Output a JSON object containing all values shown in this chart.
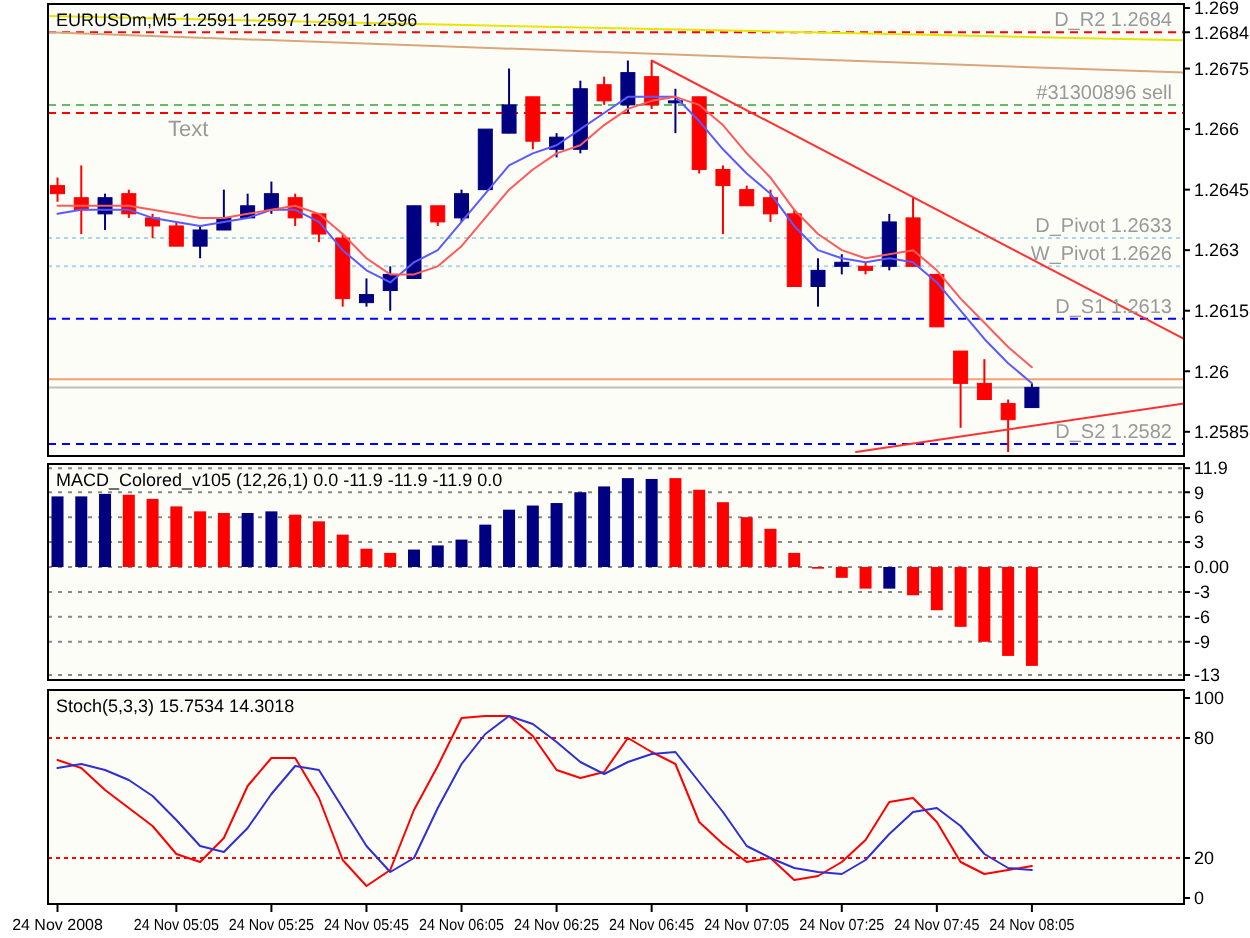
{
  "chart_data": [
    {
      "type": "candlestick",
      "title": "EURUSDm,M5 1.2591 1.2597 1.2591 1.2596",
      "tick_labels": "y",
      "x": [
        "2008-11-24T04:40",
        "2008-11-24T04:45",
        "2008-11-24T04:50",
        "2008-11-24T04:55",
        "2008-11-24T05:00",
        "2008-11-24T05:05",
        "2008-11-24T05:10",
        "2008-11-24T05:15",
        "2008-11-24T05:20",
        "2008-11-24T05:25",
        "2008-11-24T05:30",
        "2008-11-24T05:35",
        "2008-11-24T05:40",
        "2008-11-24T05:45",
        "2008-11-24T05:50",
        "2008-11-24T05:55",
        "2008-11-24T06:00",
        "2008-11-24T06:05",
        "2008-11-24T06:10",
        "2008-11-24T06:15",
        "2008-11-24T06:20",
        "2008-11-24T06:25",
        "2008-11-24T06:30",
        "2008-11-24T06:35",
        "2008-11-24T06:40",
        "2008-11-24T06:45",
        "2008-11-24T06:50",
        "2008-11-24T06:55",
        "2008-11-24T07:00",
        "2008-11-24T07:05",
        "2008-11-24T07:10",
        "2008-11-24T07:15",
        "2008-11-24T07:20",
        "2008-11-24T07:25",
        "2008-11-24T07:30",
        "2008-11-24T07:35",
        "2008-11-24T07:40",
        "2008-11-24T07:45",
        "2008-11-24T07:50",
        "2008-11-24T07:55",
        "2008-11-24T08:00",
        "2008-11-24T08:05"
      ],
      "ohlc": [
        [
          1.2646,
          1.2648,
          1.2642,
          1.2644
        ],
        [
          1.2643,
          1.2651,
          1.2634,
          1.264
        ],
        [
          1.2639,
          1.2644,
          1.2635,
          1.2643
        ],
        [
          1.2644,
          1.2645,
          1.2638,
          1.2639
        ],
        [
          1.2638,
          1.2639,
          1.2633,
          1.2636
        ],
        [
          1.2636,
          1.2637,
          1.2631,
          1.2631
        ],
        [
          1.2631,
          1.2636,
          1.2628,
          1.2635
        ],
        [
          1.2635,
          1.2645,
          1.2635,
          1.2638
        ],
        [
          1.2638,
          1.2644,
          1.2638,
          1.2641
        ],
        [
          1.264,
          1.2647,
          1.2639,
          1.2644
        ],
        [
          1.2643,
          1.2644,
          1.2636,
          1.2638
        ],
        [
          1.2639,
          1.2639,
          1.2632,
          1.2634
        ],
        [
          1.2633,
          1.2634,
          1.2616,
          1.2618
        ],
        [
          1.2617,
          1.2623,
          1.2616,
          1.2619
        ],
        [
          1.262,
          1.2626,
          1.2615,
          1.2624
        ],
        [
          1.2623,
          1.2641,
          1.2623,
          1.2641
        ],
        [
          1.2641,
          1.2641,
          1.2636,
          1.2637
        ],
        [
          1.2638,
          1.2645,
          1.2637,
          1.2644
        ],
        [
          1.2645,
          1.266,
          1.2645,
          1.266
        ],
        [
          1.2659,
          1.2675,
          1.2659,
          1.2666
        ],
        [
          1.2668,
          1.2668,
          1.2655,
          1.2657
        ],
        [
          1.2655,
          1.2659,
          1.2653,
          1.2658
        ],
        [
          1.2655,
          1.2672,
          1.2654,
          1.267
        ],
        [
          1.2671,
          1.2673,
          1.2666,
          1.2667
        ],
        [
          1.2666,
          1.2677,
          1.2664,
          1.2674
        ],
        [
          1.2673,
          1.2677,
          1.2665,
          1.2666
        ],
        [
          1.2667,
          1.267,
          1.2659,
          1.2667
        ],
        [
          1.2668,
          1.2668,
          1.2649,
          1.265
        ],
        [
          1.265,
          1.2651,
          1.2634,
          1.2646
        ],
        [
          1.2645,
          1.2646,
          1.2641,
          1.2641
        ],
        [
          1.2643,
          1.2645,
          1.2637,
          1.2639
        ],
        [
          1.2639,
          1.264,
          1.2621,
          1.2621
        ],
        [
          1.2621,
          1.2628,
          1.2616,
          1.2625
        ],
        [
          1.2626,
          1.2629,
          1.2624,
          1.2627
        ],
        [
          1.2626,
          1.2627,
          1.2624,
          1.2625
        ],
        [
          1.2626,
          1.2639,
          1.2625,
          1.2637
        ],
        [
          1.2638,
          1.2643,
          1.2626,
          1.2626
        ],
        [
          1.2624,
          1.2624,
          1.2611,
          1.2611
        ],
        [
          1.2605,
          1.2605,
          1.2586,
          1.2597
        ],
        [
          1.2597,
          1.2603,
          1.2593,
          1.2593
        ],
        [
          1.2592,
          1.2593,
          1.258,
          1.2588
        ],
        [
          1.2591,
          1.2597,
          1.2591,
          1.2596
        ]
      ],
      "colors": [
        "#ff0000",
        "#ff0000",
        "#000080",
        "#ff0000",
        "#ff0000",
        "#ff0000",
        "#000080",
        "#000080",
        "#000080",
        "#000080",
        "#ff0000",
        "#ff0000",
        "#ff0000",
        "#000080",
        "#000080",
        "#000080",
        "#ff0000",
        "#000080",
        "#000080",
        "#000080",
        "#ff0000",
        "#000080",
        "#000080",
        "#ff0000",
        "#000080",
        "#ff0000",
        "#000080",
        "#ff0000",
        "#ff0000",
        "#ff0000",
        "#ff0000",
        "#ff0000",
        "#000080",
        "#000080",
        "#ff0000",
        "#000080",
        "#ff0000",
        "#ff0000",
        "#ff0000",
        "#ff0000",
        "#ff0000",
        "#000080"
      ],
      "series": [
        {
          "type": "line",
          "color": "#5a5aff",
          "values": [
            1.2639,
            1.264,
            1.264,
            1.264,
            1.2638,
            1.2637,
            1.2636,
            1.2637,
            1.2638,
            1.264,
            1.264,
            1.2637,
            1.263,
            1.2625,
            1.2622,
            1.2627,
            1.263,
            1.2637,
            1.2644,
            1.2651,
            1.2654,
            1.2656,
            1.266,
            1.2664,
            1.2668,
            1.2668,
            1.2668,
            1.2662,
            1.2655,
            1.2649,
            1.2644,
            1.2636,
            1.263,
            1.2628,
            1.2627,
            1.2628,
            1.2627,
            1.2622,
            1.2615,
            1.2608,
            1.2602,
            1.2597
          ]
        },
        {
          "type": "line",
          "color": "#ff5a5a",
          "values": [
            1.2641,
            1.2641,
            1.2641,
            1.2641,
            1.264,
            1.2639,
            1.2638,
            1.2638,
            1.2639,
            1.264,
            1.2641,
            1.2639,
            1.2634,
            1.2628,
            1.2624,
            1.2624,
            1.2626,
            1.2631,
            1.2638,
            1.2645,
            1.265,
            1.2654,
            1.2656,
            1.2661,
            1.2665,
            1.2667,
            1.2668,
            1.2666,
            1.2661,
            1.2654,
            1.2648,
            1.264,
            1.2634,
            1.263,
            1.2628,
            1.2629,
            1.263,
            1.2625,
            1.2618,
            1.2612,
            1.2606,
            1.2601
          ]
        },
        {
          "type": "line",
          "color": "#e6e600",
          "x": [
            "2008-11-24T04:38",
            "2008-11-24T08:37"
          ],
          "values": [
            1.2688,
            1.2682
          ]
        },
        {
          "type": "line",
          "color": "#d9a77a",
          "x": [
            "2008-11-24T04:38",
            "2008-11-24T08:37"
          ],
          "values": [
            1.2684,
            1.2674
          ]
        },
        {
          "type": "line",
          "color": "#ff3030",
          "x": [
            "2008-11-24T06:45",
            "2008-11-24T08:37"
          ],
          "values": [
            1.2677,
            1.2608
          ]
        },
        {
          "type": "line",
          "color": "#ff3030",
          "x": [
            "2008-11-24T07:28",
            "2008-11-24T08:37"
          ],
          "values": [
            1.258,
            1.2592
          ]
        }
      ],
      "xlim": [
        "2008-11-24T04:38",
        "2008-11-24T08:37"
      ],
      "ylim": [
        1.2579,
        1.2691
      ],
      "yticks": [
        1.269,
        1.2684,
        1.2675,
        1.266,
        1.2645,
        1.263,
        1.2615,
        1.26,
        1.2585
      ],
      "ref_lines": [
        {
          "axis": "y",
          "value": 1.2684,
          "label": "D_R2 1.2684",
          "color": "#ff0000",
          "line_style": "dashed"
        },
        {
          "axis": "y",
          "value": 1.2666,
          "label": "#31300896 sell",
          "color": "#66bb66",
          "line_style": "dashed"
        },
        {
          "axis": "y",
          "value": 1.2664,
          "color": "#ff0000",
          "line_style": "dashed"
        },
        {
          "axis": "y",
          "value": 1.2633,
          "label": "D_Pivot 1.2633",
          "color": "#a8d8e8",
          "line_style": "dotted"
        },
        {
          "axis": "y",
          "value": 1.2626,
          "label": "W_Pivot 1.2626",
          "color": "#a8d8e8",
          "line_style": "dotted"
        },
        {
          "axis": "y",
          "value": 1.2613,
          "label": "D_S1 1.2613",
          "color": "#0000ff",
          "line_style": "dashed"
        },
        {
          "axis": "y",
          "value": 1.2598,
          "color": "#f4a070",
          "line_style": "solid"
        },
        {
          "axis": "y",
          "value": 1.2596,
          "color": "#c0c0c0",
          "line_style": "solid"
        },
        {
          "axis": "y",
          "value": 1.2582,
          "label": "D_S2 1.2582",
          "color": "#0000ff",
          "line_style": "dashed"
        }
      ],
      "annotations": [
        "Text"
      ]
    },
    {
      "type": "bar",
      "title": "MACD_Colored_v105 (12,26,1) 0.0 -11.9 -11.9 -11.9 0.0",
      "tick_labels": "y",
      "grid": "y",
      "x": [
        "2008-11-24T04:40",
        "2008-11-24T04:45",
        "2008-11-24T04:50",
        "2008-11-24T04:55",
        "2008-11-24T05:00",
        "2008-11-24T05:05",
        "2008-11-24T05:10",
        "2008-11-24T05:15",
        "2008-11-24T05:20",
        "2008-11-24T05:25",
        "2008-11-24T05:30",
        "2008-11-24T05:35",
        "2008-11-24T05:40",
        "2008-11-24T05:45",
        "2008-11-24T05:50",
        "2008-11-24T05:55",
        "2008-11-24T06:00",
        "2008-11-24T06:05",
        "2008-11-24T06:10",
        "2008-11-24T06:15",
        "2008-11-24T06:20",
        "2008-11-24T06:25",
        "2008-11-24T06:30",
        "2008-11-24T06:35",
        "2008-11-24T06:40",
        "2008-11-24T06:45",
        "2008-11-24T06:50",
        "2008-11-24T06:55",
        "2008-11-24T07:00",
        "2008-11-24T07:05",
        "2008-11-24T07:10",
        "2008-11-24T07:15",
        "2008-11-24T07:20",
        "2008-11-24T07:25",
        "2008-11-24T07:30",
        "2008-11-24T07:35",
        "2008-11-24T07:40",
        "2008-11-24T07:45",
        "2008-11-24T07:50",
        "2008-11-24T07:55",
        "2008-11-24T08:00",
        "2008-11-24T08:05"
      ],
      "values": [
        8.5,
        8.5,
        8.8,
        8.7,
        8.2,
        7.3,
        6.7,
        6.5,
        6.5,
        6.7,
        6.3,
        5.5,
        3.9,
        2.2,
        1.7,
        2.1,
        2.6,
        3.3,
        5.1,
        6.9,
        7.4,
        7.7,
        9.0,
        9.7,
        10.7,
        10.6,
        10.7,
        9.3,
        7.8,
        6.0,
        4.6,
        1.7,
        -0.2,
        -1.3,
        -2.6,
        -2.6,
        -3.4,
        -5.2,
        -7.2,
        -9.0,
        -10.7,
        -11.9
      ],
      "colors": [
        "#000080",
        "#000080",
        "#000080",
        "#ff0000",
        "#ff0000",
        "#ff0000",
        "#ff0000",
        "#ff0000",
        "#000080",
        "#000080",
        "#ff0000",
        "#ff0000",
        "#ff0000",
        "#ff0000",
        "#ff0000",
        "#000080",
        "#000080",
        "#000080",
        "#000080",
        "#000080",
        "#000080",
        "#000080",
        "#000080",
        "#000080",
        "#000080",
        "#000080",
        "#ff0000",
        "#ff0000",
        "#ff0000",
        "#ff0000",
        "#ff0000",
        "#ff0000",
        "#ff0000",
        "#ff0000",
        "#ff0000",
        "#000080",
        "#ff0000",
        "#ff0000",
        "#ff0000",
        "#ff0000",
        "#ff0000",
        "#ff0000"
      ],
      "xlim": [
        "2008-11-24T04:38",
        "2008-11-24T08:37"
      ],
      "ylim": [
        -13.6,
        12.4
      ],
      "yticks": [
        11.9,
        9,
        6,
        3,
        {
          "value": 0,
          "label": "0.00"
        },
        -3,
        -6,
        -9,
        -13
      ]
    },
    {
      "type": "line",
      "title": "Stoch(5,3,3) 15.7534 14.3018",
      "x": [
        "2008-11-24T04:40",
        "2008-11-24T04:45",
        "2008-11-24T04:50",
        "2008-11-24T04:55",
        "2008-11-24T05:00",
        "2008-11-24T05:05",
        "2008-11-24T05:10",
        "2008-11-24T05:15",
        "2008-11-24T05:20",
        "2008-11-24T05:25",
        "2008-11-24T05:30",
        "2008-11-24T05:35",
        "2008-11-24T05:40",
        "2008-11-24T05:45",
        "2008-11-24T05:50",
        "2008-11-24T05:55",
        "2008-11-24T06:00",
        "2008-11-24T06:05",
        "2008-11-24T06:10",
        "2008-11-24T06:15",
        "2008-11-24T06:20",
        "2008-11-24T06:25",
        "2008-11-24T06:30",
        "2008-11-24T06:35",
        "2008-11-24T06:40",
        "2008-11-24T06:45",
        "2008-11-24T06:50",
        "2008-11-24T06:55",
        "2008-11-24T07:00",
        "2008-11-24T07:05",
        "2008-11-24T07:10",
        "2008-11-24T07:15",
        "2008-11-24T07:20",
        "2008-11-24T07:25",
        "2008-11-24T07:30",
        "2008-11-24T07:35",
        "2008-11-24T07:40",
        "2008-11-24T07:45",
        "2008-11-24T07:50",
        "2008-11-24T07:55",
        "2008-11-24T08:00",
        "2008-11-24T08:05"
      ],
      "series": [
        {
          "color": "#ff0000",
          "values": [
            69,
            65,
            54,
            45,
            36,
            22,
            18,
            30,
            56,
            70,
            70,
            50,
            19,
            6,
            14,
            44,
            66,
            90,
            91,
            91,
            81,
            64,
            60,
            63,
            80,
            73,
            67,
            38,
            27,
            18,
            20,
            9,
            11,
            18,
            29,
            48,
            50,
            38,
            18,
            12,
            14,
            16
          ]
        },
        {
          "color": "#3030d0",
          "values": [
            65,
            67,
            64,
            59,
            51,
            39,
            26,
            23,
            35,
            52,
            66,
            64,
            45,
            26,
            13,
            20,
            45,
            67,
            82,
            91,
            87,
            78,
            68,
            62,
            68,
            72,
            73,
            58,
            43,
            26,
            20,
            15,
            13,
            12,
            19,
            32,
            43,
            45,
            36,
            22,
            15,
            14
          ]
        }
      ],
      "xlim": [
        "2008-11-24T04:38",
        "2008-11-24T08:37"
      ],
      "ylim": [
        -3,
        104
      ],
      "yticks": [
        100,
        80,
        20,
        0
      ],
      "xticks": [
        {
          "value": "2008-11-24T04:40",
          "label": "24 Nov 2008"
        },
        {
          "value": "2008-11-24T05:05",
          "label": "24 Nov 05:05"
        },
        {
          "value": "2008-11-24T05:25",
          "label": "24 Nov 05:25"
        },
        {
          "value": "2008-11-24T05:45",
          "label": "24 Nov 05:45"
        },
        {
          "value": "2008-11-24T06:05",
          "label": "24 Nov 06:05"
        },
        {
          "value": "2008-11-24T06:25",
          "label": "24 Nov 06:25"
        },
        {
          "value": "2008-11-24T06:45",
          "label": "24 Nov 06:45"
        },
        {
          "value": "2008-11-24T07:05",
          "label": "24 Nov 07:05"
        },
        {
          "value": "2008-11-24T07:25",
          "label": "24 Nov 07:25"
        },
        {
          "value": "2008-11-24T07:45",
          "label": "24 Nov 07:45"
        },
        {
          "value": "2008-11-24T08:05",
          "label": "24 Nov 08:05"
        }
      ],
      "ref_lines": [
        {
          "axis": "y",
          "value": 80,
          "color": "#ff0000",
          "line_style": "dotted"
        },
        {
          "axis": "y",
          "value": 20,
          "color": "#ff0000",
          "line_style": "dotted"
        }
      ]
    }
  ]
}
